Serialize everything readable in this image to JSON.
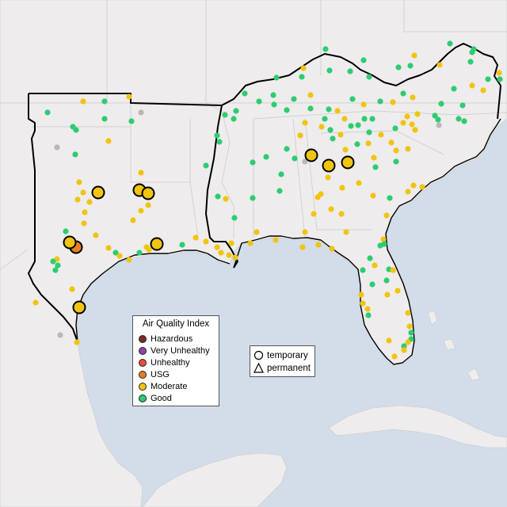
{
  "legend": {
    "title": "Air Quality Index",
    "categories": [
      {
        "label": "Hazardous",
        "color": "#7e2a2a"
      },
      {
        "label": "Very Unhealthy",
        "color": "#8e44ad"
      },
      {
        "label": "Unhealthy",
        "color": "#e74c3c"
      },
      {
        "label": "USG",
        "color": "#e67e22"
      },
      {
        "label": "Moderate",
        "color": "#f1c40f"
      },
      {
        "label": "Good",
        "color": "#2ecc71"
      }
    ]
  },
  "shape_legend": {
    "temporary": "temporary",
    "permanent": "permanent"
  },
  "colors": {
    "water": "#d2dde9",
    "land": "#eeecec",
    "good": "#2ecc71",
    "moderate": "#f1c40f",
    "usg": "#e67e22",
    "no_data": "#b8b8b8"
  }
}
